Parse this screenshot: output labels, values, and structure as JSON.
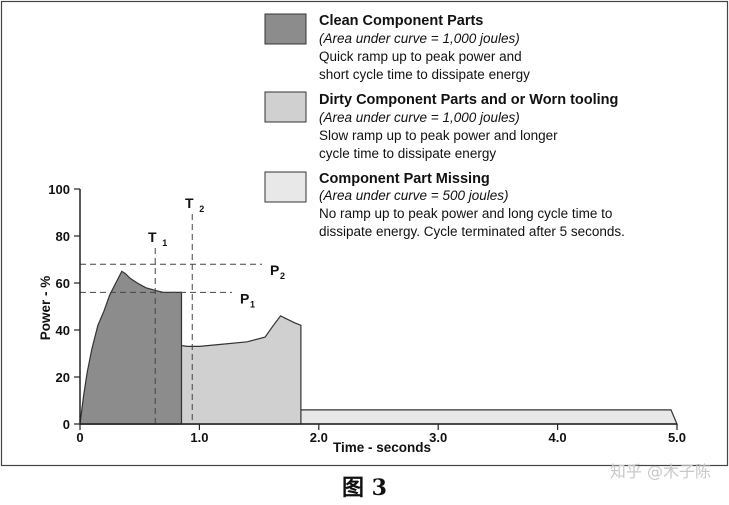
{
  "caption": "图 3",
  "watermark": "知乎 @木子陈",
  "chart_data": {
    "type": "area",
    "title": "",
    "xlabel": "Time - seconds",
    "ylabel": "Power - %",
    "xlim": [
      0,
      5
    ],
    "ylim": [
      0,
      100
    ],
    "xticks": [
      0,
      1.0,
      2.0,
      3.0,
      4.0,
      5.0
    ],
    "xtick_labels": [
      "0",
      "1.0",
      "2.0",
      "3.0",
      "4.0",
      "5.0"
    ],
    "yticks": [
      0,
      20,
      40,
      60,
      80,
      100
    ],
    "ytick_labels": [
      "0",
      "20",
      "40",
      "60",
      "80",
      "100"
    ],
    "grid": false,
    "legend_position": "top-right",
    "series": [
      {
        "name": "Clean Component Parts",
        "note": "(Area under curve = 1,000 joules)",
        "description": [
          "Quick ramp up to peak power and",
          "short cycle time to dissipate energy"
        ],
        "color": "#8c8c8c",
        "x": [
          0.0,
          0.03,
          0.06,
          0.1,
          0.15,
          0.2,
          0.25,
          0.3,
          0.35,
          0.38,
          0.42,
          0.48,
          0.55,
          0.62,
          0.7,
          0.78,
          0.85,
          0.85
        ],
        "y": [
          0,
          12,
          22,
          32,
          42,
          48,
          55,
          60,
          65,
          64,
          62,
          60,
          58,
          57,
          56,
          56,
          56,
          0
        ]
      },
      {
        "name": "Dirty Component Parts and or Worn tooling",
        "note": "(Area under curve = 1,000 joules)",
        "description": [
          "Slow ramp up to peak power and longer",
          "cycle time to dissipate energy"
        ],
        "color": "#d0d0d0",
        "x": [
          0.0,
          0.05,
          0.1,
          0.2,
          0.3,
          0.38,
          0.48,
          0.6,
          0.75,
          0.9,
          1.0,
          1.2,
          1.4,
          1.55,
          1.62,
          1.68,
          1.72,
          1.8,
          1.85,
          1.85
        ],
        "y": [
          0,
          18,
          28,
          33,
          36,
          38,
          37,
          35,
          34,
          33,
          33,
          34,
          35,
          37,
          42,
          46,
          45,
          43,
          42,
          0
        ]
      },
      {
        "name": "Component Part Missing",
        "note": "(Area under curve = 500 joules)",
        "description": [
          "No ramp up to peak power and long cycle time to",
          "dissipate energy.  Cycle terminated after 5 seconds."
        ],
        "color": "#e8e8e8",
        "x": [
          0.0,
          0.05,
          0.12,
          0.4,
          1.0,
          2.0,
          3.0,
          4.0,
          4.95,
          5.0
        ],
        "y": [
          0,
          4,
          6,
          6,
          6,
          6,
          6,
          6,
          6,
          0
        ]
      }
    ],
    "reference_lines": [
      {
        "label": "T",
        "subscript": "1",
        "axis": "x",
        "value": 0.63
      },
      {
        "label": "T",
        "subscript": "2",
        "axis": "x",
        "value": 0.94
      },
      {
        "label": "P",
        "subscript": "1",
        "axis": "y",
        "value": 56
      },
      {
        "label": "P",
        "subscript": "2",
        "axis": "y",
        "value": 68
      }
    ]
  }
}
